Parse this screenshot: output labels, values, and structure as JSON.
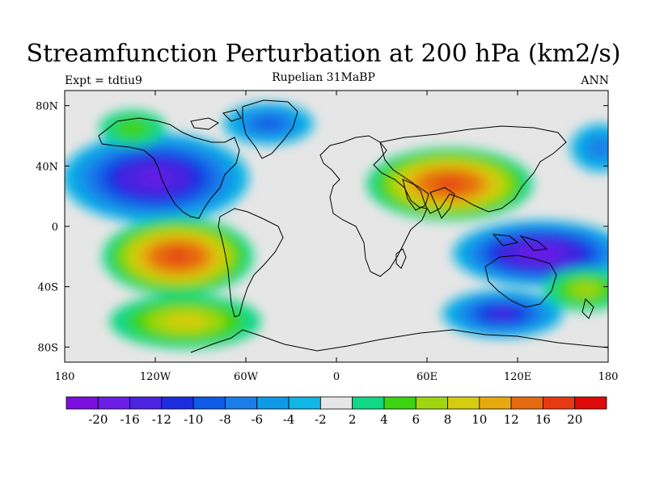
{
  "plot": {
    "title": "Streamfunction Perturbation at 200 hPa (km2/s)",
    "left_string": "Expt = tdtiu9",
    "center_string": "Rupelian  31MaBP",
    "right_string": "ANN"
  },
  "map": {
    "projection": "cylindrical-equidistant",
    "lon_range": [
      -180,
      180
    ],
    "lat_range": [
      -90,
      90
    ],
    "x_ticks": [
      {
        "value": -180,
        "label": "180"
      },
      {
        "value": -120,
        "label": "120W"
      },
      {
        "value": -60,
        "label": "60W"
      },
      {
        "value": 0,
        "label": "0"
      },
      {
        "value": 60,
        "label": "60E"
      },
      {
        "value": 120,
        "label": "120E"
      },
      {
        "value": 180,
        "label": "180"
      }
    ],
    "y_ticks": [
      {
        "value": 80,
        "label": "80N"
      },
      {
        "value": 40,
        "label": "40N"
      },
      {
        "value": 0,
        "label": "0"
      },
      {
        "value": -40,
        "label": "40S"
      },
      {
        "value": -80,
        "label": "80S"
      }
    ],
    "features": [
      {
        "type": "low",
        "lon": -120,
        "lat": 32,
        "peak": -16
      },
      {
        "type": "low",
        "lon": 135,
        "lat": -18,
        "peak": -18
      },
      {
        "type": "low",
        "lon": 110,
        "lat": -58,
        "peak": -12
      },
      {
        "type": "low",
        "lon": -45,
        "lat": 68,
        "peak": -8
      },
      {
        "type": "low",
        "lon": 175,
        "lat": 52,
        "peak": -6
      },
      {
        "type": "high",
        "lon": -105,
        "lat": -20,
        "peak": 16
      },
      {
        "type": "high",
        "lon": 75,
        "lat": 28,
        "peak": 16
      },
      {
        "type": "high",
        "lon": -100,
        "lat": -63,
        "peak": 8
      },
      {
        "type": "high",
        "lon": 165,
        "lat": -42,
        "peak": 6
      },
      {
        "type": "high",
        "lon": -135,
        "lat": 65,
        "peak": 4
      }
    ]
  },
  "colorbar": {
    "levels": [
      -20,
      -16,
      -12,
      -10,
      -8,
      -6,
      -4,
      -2,
      2,
      4,
      6,
      8,
      10,
      12,
      16,
      20
    ],
    "colors": [
      "#7c0fe0",
      "#6a1ee6",
      "#4a24e0",
      "#1e2ce0",
      "#0f5ae6",
      "#1a7ee8",
      "#0f9ae8",
      "#0fb6e6",
      "#e6e6e6",
      "#10d884",
      "#3cd310",
      "#a0d610",
      "#d6cc10",
      "#e6aa10",
      "#e66a10",
      "#e63a14",
      "#e00a0a"
    ]
  }
}
